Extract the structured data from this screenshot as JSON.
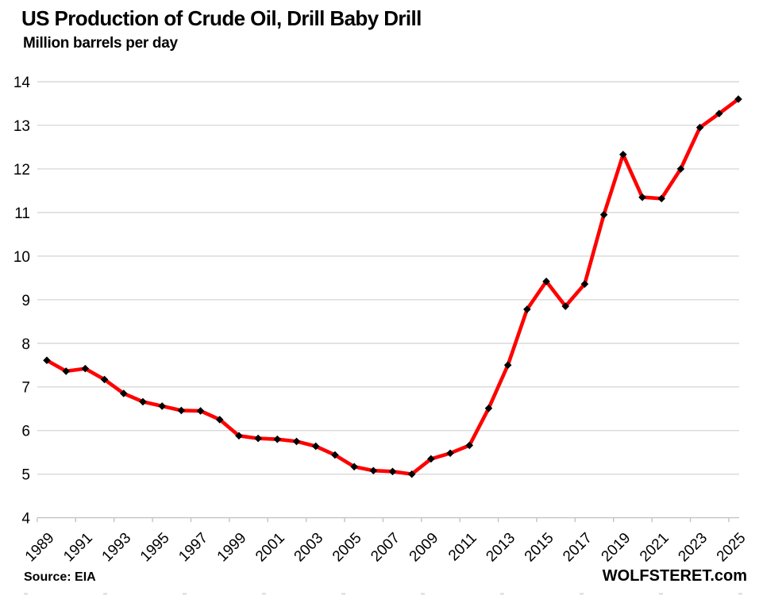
{
  "header": {
    "title": "US Production of Crude Oil, Drill Baby Drill",
    "subtitle": "Million barrels per day"
  },
  "footer": {
    "source": "Source: EIA",
    "site": "WOLFSTERET.com"
  },
  "colors": {
    "line": "#FF0000",
    "marker": "#000000",
    "gridline": "#D9D9D9",
    "axis": "#C3C3C3",
    "text": "#000000",
    "edge_marks": "#D9D9D9"
  },
  "chart_data": {
    "type": "line",
    "title": "US Production of Crude Oil, Drill Baby Drill",
    "subtitle": "Million barrels per day",
    "xlabel": "",
    "ylabel": "Million barrels per day",
    "ylim": [
      4,
      14
    ],
    "yticks": [
      4,
      5,
      6,
      7,
      8,
      9,
      10,
      11,
      12,
      13,
      14
    ],
    "grid": "horizontal",
    "legend": "none",
    "marker": "diamond",
    "x": [
      1989,
      1990,
      1991,
      1992,
      1993,
      1994,
      1995,
      1996,
      1997,
      1998,
      1999,
      2000,
      2001,
      2002,
      2003,
      2004,
      2005,
      2006,
      2007,
      2008,
      2009,
      2010,
      2011,
      2012,
      2013,
      2014,
      2015,
      2016,
      2017,
      2018,
      2019,
      2020,
      2021,
      2022,
      2023,
      2024,
      2025
    ],
    "xtick_labels": [
      "1989",
      "1991",
      "1993",
      "1995",
      "1997",
      "1999",
      "2001",
      "2003",
      "2005",
      "2007",
      "2009",
      "2011",
      "2013",
      "2015",
      "2017",
      "2019",
      "2021",
      "2023",
      "2025"
    ],
    "series": [
      {
        "name": "US crude oil production",
        "values": [
          7.61,
          7.36,
          7.42,
          7.17,
          6.85,
          6.66,
          6.56,
          6.46,
          6.45,
          6.25,
          5.88,
          5.82,
          5.8,
          5.75,
          5.64,
          5.44,
          5.17,
          5.08,
          5.06,
          5.0,
          5.35,
          5.48,
          5.66,
          6.51,
          7.5,
          8.78,
          9.42,
          8.85,
          9.36,
          10.95,
          12.33,
          11.35,
          11.32,
          12.0,
          12.95,
          13.27,
          13.6
        ]
      }
    ]
  }
}
